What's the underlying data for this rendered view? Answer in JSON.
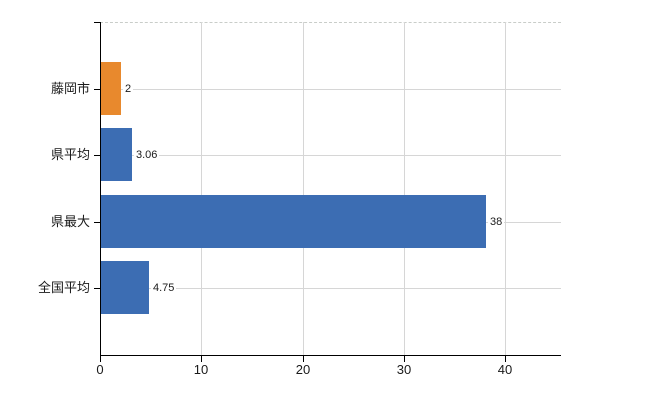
{
  "chart_data": {
    "type": "bar",
    "orientation": "horizontal",
    "title": "",
    "categories": [
      "藤岡市",
      "県平均",
      "県最大",
      "全国平均"
    ],
    "values": [
      2,
      3.06,
      38,
      4.75
    ],
    "value_labels": [
      "2",
      "3.06",
      "38",
      "4.75"
    ],
    "bar_colors": [
      "#E8892D",
      "#3C6DB3",
      "#3C6DB3",
      "#3C6DB3"
    ],
    "x_ticks": [
      0,
      10,
      20,
      30,
      40
    ],
    "x_tick_labels": [
      "0",
      "10",
      "20",
      "30",
      "40"
    ],
    "xlim": [
      0,
      45.5
    ],
    "grid": true,
    "legend": "none"
  },
  "colors": {
    "bar_orange": "#E8892D",
    "bar_blue": "#3C6DB3",
    "axis": "#000000",
    "gridline": "#D6D6D6",
    "plot_top_border": "#C9CDC9",
    "text": "#1A1A1A",
    "background": "#FFFFFF"
  }
}
